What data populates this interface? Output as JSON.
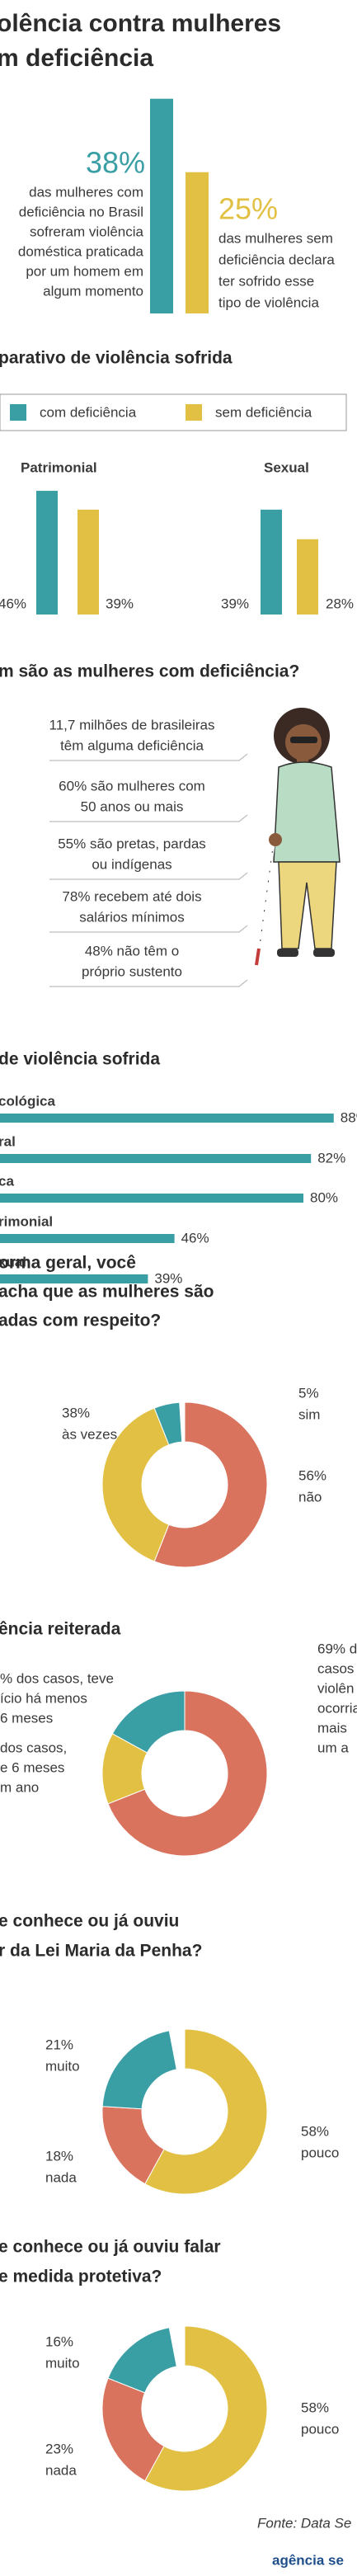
{
  "title": [
    "olência contra mulheres",
    "m deficiência"
  ],
  "chart_data": [
    {
      "type": "intro",
      "values": [
        38,
        25
      ],
      "value_labels": [
        "38%",
        "25%"
      ],
      "colors": [
        "#3a9ea5",
        "#e2c044"
      ],
      "texts": [
        [
          "das mulheres com",
          "deficiência no Brasil",
          "sofreram violência",
          "doméstica praticada",
          "por um homem em",
          "algum momento"
        ],
        [
          "das mulheres sem",
          "deficiência declara",
          "ter sofrido esse",
          "tipo de violência"
        ]
      ]
    },
    {
      "type": "bar",
      "title": "parativo de violência sofrida",
      "categories": [
        "Patrimonial",
        "Sexual"
      ],
      "series": [
        {
          "name": "com deficiência",
          "color": "#3a9ea5",
          "values": [
            46,
            39
          ],
          "value_labels": [
            "46%",
            "39%"
          ]
        },
        {
          "name": "sem deficiência",
          "color": "#e2c044",
          "values": [
            39,
            28
          ],
          "value_labels": [
            "39%",
            "28%"
          ]
        }
      ]
    },
    {
      "type": "hbar",
      "title": "de violência sofrida",
      "categories": [
        "cológica",
        "ral",
        "ca",
        "rimonial",
        "xual"
      ],
      "values": [
        88,
        82,
        80,
        46,
        39
      ],
      "value_labels": [
        "88%",
        "82%",
        "80%",
        "46%",
        "39%"
      ],
      "color": "#3a9ea5"
    },
    {
      "type": "donut",
      "title": [
        "orma geral, você",
        "acha que as mulheres são",
        "adas com respeito?"
      ],
      "values": [
        56,
        38,
        5
      ],
      "colors": [
        "#d9735e",
        "#e2c044",
        "#3a9ea5"
      ],
      "labels": [
        [
          "56%",
          "não"
        ],
        [
          "38%",
          "às vezes"
        ],
        [
          "5%",
          "sim"
        ]
      ]
    },
    {
      "type": "donut",
      "title": [
        "ência reiterada"
      ],
      "values": [
        69,
        14,
        17
      ],
      "colors": [
        "#d9735e",
        "#e2c044",
        "#3a9ea5"
      ],
      "labels": [
        [
          "69% do",
          "casos",
          "violên",
          "ocorria",
          "mais",
          "um a"
        ],
        [
          "dos casos,",
          "e 6 meses",
          "m ano"
        ],
        [
          "% dos casos, teve",
          "ício há menos",
          "6 meses"
        ]
      ]
    },
    {
      "type": "donut",
      "title": [
        "e conhece ou já ouviu",
        "r da Lei Maria da Penha?"
      ],
      "values": [
        58,
        18,
        21
      ],
      "colors": [
        "#e2c044",
        "#d9735e",
        "#3a9ea5"
      ],
      "labels": [
        [
          "58%",
          "pouco"
        ],
        [
          "18%",
          "nada"
        ],
        [
          "21%",
          "muito"
        ]
      ]
    },
    {
      "type": "donut",
      "title": [
        "e conhece ou já ouviu falar",
        "e medida protetiva?"
      ],
      "values": [
        58,
        23,
        16
      ],
      "colors": [
        "#e2c044",
        "#d9735e",
        "#3a9ea5"
      ],
      "labels": [
        [
          "58%",
          "pouco"
        ],
        [
          "23%",
          "nada"
        ],
        [
          "16%",
          "muito"
        ]
      ]
    }
  ],
  "profile": {
    "title": "m são as mulheres com deficiência?",
    "items": [
      [
        "11,7 milhões de brasileiras",
        "têm alguma deficiência"
      ],
      [
        "60% são mulheres com",
        "50 anos ou mais"
      ],
      [
        "55% são pretas, pardas",
        "ou indígenas"
      ],
      [
        "78% recebem até dois",
        "salários mínimos"
      ],
      [
        "48% não têm o",
        "próprio sustento"
      ]
    ]
  },
  "source": "Fonte: Data Se",
  "logo": "agência se"
}
